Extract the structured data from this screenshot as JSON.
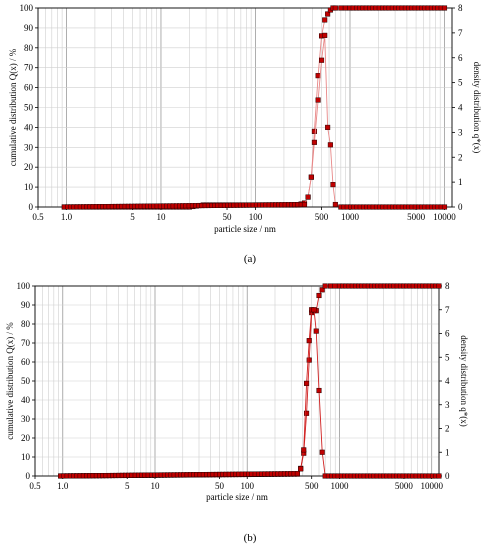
{
  "chart_data": [
    {
      "type": "line",
      "caption": "(a)",
      "xlabel": "particle size / nm",
      "ylabel_left": "cumulative distribution Q(x) / %",
      "ylabel_right": "density distribution q*(x)",
      "x_scale": "log",
      "xlim": [
        0.5,
        12000
      ],
      "ylim_left": [
        0,
        100
      ],
      "ylim_right": [
        0,
        8
      ],
      "x_ticks": [
        "0.5",
        "1.0",
        "5",
        "10",
        "50",
        "100",
        "500",
        "1000",
        "5000",
        "10000"
      ],
      "x_tick_values": [
        0.5,
        1,
        5,
        10,
        50,
        100,
        500,
        1000,
        5000,
        10000
      ],
      "y_ticks_left": [
        "0",
        "10",
        "20",
        "30",
        "40",
        "50",
        "60",
        "70",
        "80",
        "90",
        "100"
      ],
      "y_ticks_right": [
        "0",
        "1",
        "2",
        "3",
        "4",
        "5",
        "6",
        "7",
        "8"
      ],
      "grid": true,
      "marker_color": "#c00000",
      "line_color": "#e88888",
      "series": [
        {
          "role": "cumulative",
          "x": [
            0.95,
            20,
            28,
            280,
            330,
            360,
            390,
            420,
            460,
            500,
            540,
            580,
            620,
            660,
            700,
            800,
            1000,
            10000
          ],
          "y": [
            0,
            0,
            1,
            1,
            2,
            5,
            15,
            38,
            66,
            86,
            94,
            97,
            99,
            100,
            100,
            100,
            100,
            100
          ]
        },
        {
          "role": "density",
          "x": [
            0.95,
            330,
            360,
            390,
            420,
            460,
            500,
            540,
            580,
            620,
            660,
            700,
            800,
            10000
          ],
          "y": [
            0,
            0.1,
            0.4,
            1.2,
            2.6,
            4.3,
            5.9,
            6.9,
            3.2,
            2.5,
            0.9,
            0.1,
            0,
            0
          ]
        }
      ]
    },
    {
      "type": "line",
      "caption": "(b)",
      "xlabel": "particle size / nm",
      "ylabel_left": "cumulative distribution Q(x) / %",
      "ylabel_right": "density distribution q*(x)",
      "x_scale": "log",
      "xlim": [
        0.5,
        12000
      ],
      "ylim_left": [
        0,
        100
      ],
      "ylim_right": [
        0,
        8
      ],
      "x_ticks": [
        "0.5",
        "1.0",
        "5",
        "10",
        "50",
        "100",
        "500",
        "1000",
        "5000",
        "10000"
      ],
      "x_tick_values": [
        0.5,
        1,
        5,
        10,
        50,
        100,
        500,
        1000,
        5000,
        10000
      ],
      "y_ticks_left": [
        "0",
        "10",
        "20",
        "30",
        "40",
        "50",
        "60",
        "70",
        "80",
        "90",
        "100"
      ],
      "y_ticks_right": [
        "0",
        "1",
        "2",
        "3",
        "4",
        "5",
        "6",
        "7",
        "8"
      ],
      "grid": true,
      "marker_color": "#c00000",
      "line_color": "#d02020",
      "series": [
        {
          "role": "cumulative",
          "x": [
            0.95,
            350,
            380,
            410,
            440,
            470,
            500,
            530,
            560,
            600,
            650,
            700,
            800,
            1000,
            12000
          ],
          "y": [
            0,
            1,
            4,
            12,
            33,
            61,
            86,
            87,
            87,
            95,
            98,
            100,
            100,
            100,
            100
          ]
        },
        {
          "role": "density",
          "x": [
            0.95,
            350,
            380,
            410,
            440,
            470,
            500,
            530,
            560,
            600,
            650,
            700,
            12000
          ],
          "y": [
            0,
            0.1,
            0.3,
            1.1,
            3.9,
            5.7,
            7.0,
            7.0,
            6.1,
            3.6,
            1.0,
            0,
            0
          ]
        }
      ]
    }
  ]
}
